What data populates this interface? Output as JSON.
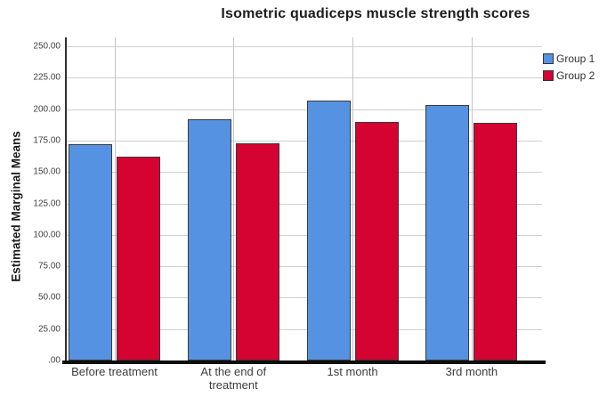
{
  "chart_data": {
    "type": "bar",
    "title": "Isometric quadiceps muscle strength scores",
    "xlabel": "",
    "ylabel": "Estimated Marginal Means",
    "categories": [
      "Before treatment",
      "At the end of treatment",
      "1st month",
      "3rd month"
    ],
    "series": [
      {
        "name": "Group 1",
        "color": "#5692E2",
        "values": [
          172,
          192,
          207,
          203
        ]
      },
      {
        "name": "Group 2",
        "color": "#D40332",
        "values": [
          162,
          173,
          190,
          189
        ]
      }
    ],
    "ylim": [
      0,
      257
    ],
    "yticks": {
      "values": [
        0,
        25,
        50,
        75,
        100,
        125,
        150,
        175,
        200,
        225,
        250
      ],
      "labels": [
        ".00",
        "25.00",
        "50.00",
        "75.00",
        "100.00",
        "125.00",
        "150.00",
        "175.00",
        "200.00",
        "225.00",
        "250.00"
      ]
    },
    "grid": "horizontal value gridlines + vertical category gridlines",
    "legend_position": "right-outside-top",
    "legend": [
      {
        "label": "Group 1",
        "color": "#5692E2"
      },
      {
        "label": "Group 2",
        "color": "#D40332"
      }
    ]
  }
}
